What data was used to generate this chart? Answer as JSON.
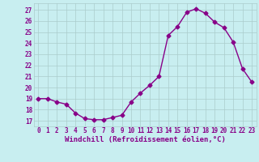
{
  "x": [
    0,
    1,
    2,
    3,
    4,
    5,
    6,
    7,
    8,
    9,
    10,
    11,
    12,
    13,
    14,
    15,
    16,
    17,
    18,
    19,
    20,
    21,
    22,
    23
  ],
  "y": [
    19.0,
    19.0,
    18.7,
    18.5,
    17.7,
    17.2,
    17.1,
    17.1,
    17.3,
    17.5,
    18.7,
    19.5,
    20.2,
    21.0,
    24.7,
    25.5,
    26.8,
    27.1,
    26.7,
    25.9,
    25.4,
    24.1,
    21.7,
    20.5
  ],
  "line_color": "#880088",
  "marker": "D",
  "marker_size": 2.5,
  "bg_color": "#c8eef0",
  "grid_color": "#aacccc",
  "xlabel": "Windchill (Refroidissement éolien,°C)",
  "ylabel": "",
  "ylim": [
    16.5,
    27.6
  ],
  "xlim": [
    -0.5,
    23.5
  ],
  "yticks": [
    17,
    18,
    19,
    20,
    21,
    22,
    23,
    24,
    25,
    26,
    27
  ],
  "xticks": [
    0,
    1,
    2,
    3,
    4,
    5,
    6,
    7,
    8,
    9,
    10,
    11,
    12,
    13,
    14,
    15,
    16,
    17,
    18,
    19,
    20,
    21,
    22,
    23
  ],
  "tick_color": "#880088",
  "tick_fontsize": 5.5,
  "xlabel_fontsize": 6.5,
  "linewidth": 1.0
}
